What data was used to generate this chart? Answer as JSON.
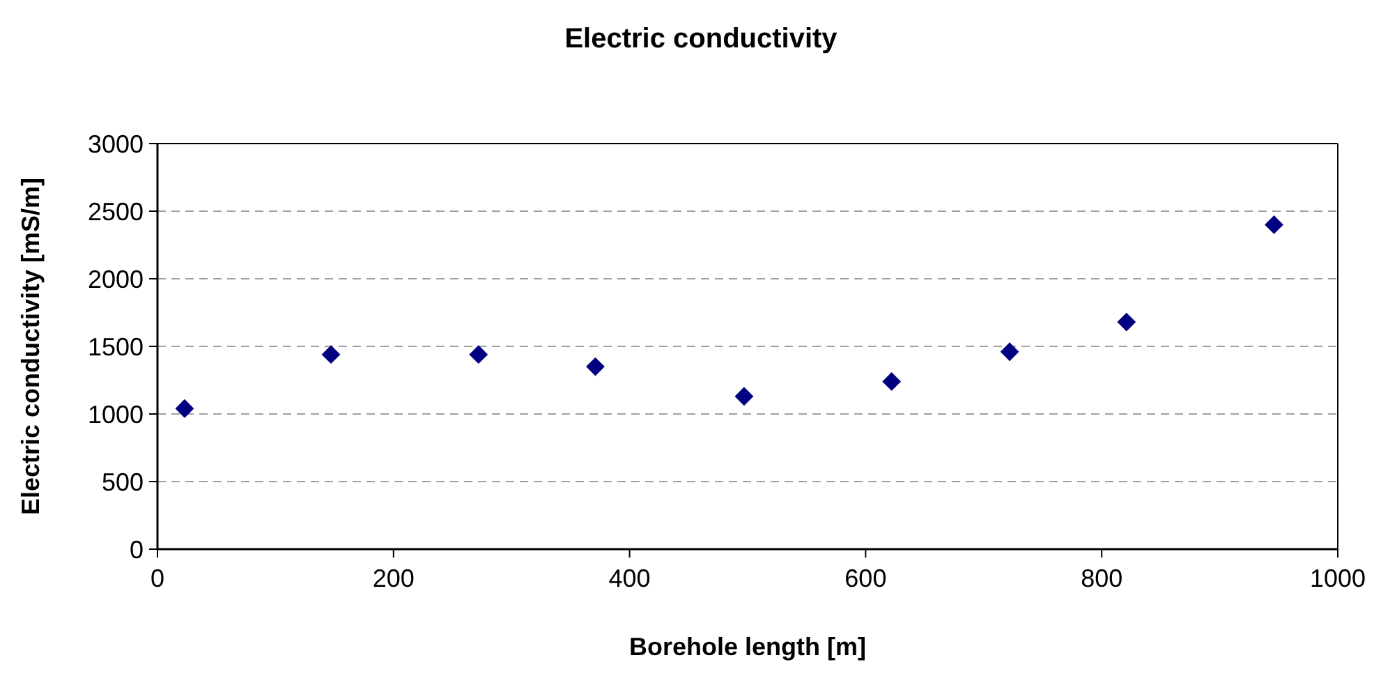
{
  "chart_data": {
    "type": "scatter",
    "title": "Electric conductivity",
    "xlabel": "Borehole length [m]",
    "ylabel": "Electric conductivity [mS/m]",
    "x": [
      23,
      147,
      272,
      371,
      497,
      622,
      722,
      821,
      946
    ],
    "series": [
      {
        "color": "#000080",
        "values": [
          1040,
          1440,
          1440,
          1350,
          1130,
          1240,
          1460,
          1680,
          2400
        ]
      }
    ],
    "xlim": [
      0,
      1000
    ],
    "xticks": [
      0,
      200,
      400,
      600,
      800,
      1000
    ],
    "ylim": [
      0,
      3000
    ],
    "yticks": [
      0,
      500,
      1000,
      1500,
      2000,
      2500,
      3000
    ],
    "grid": "y",
    "marker": "diamond"
  }
}
